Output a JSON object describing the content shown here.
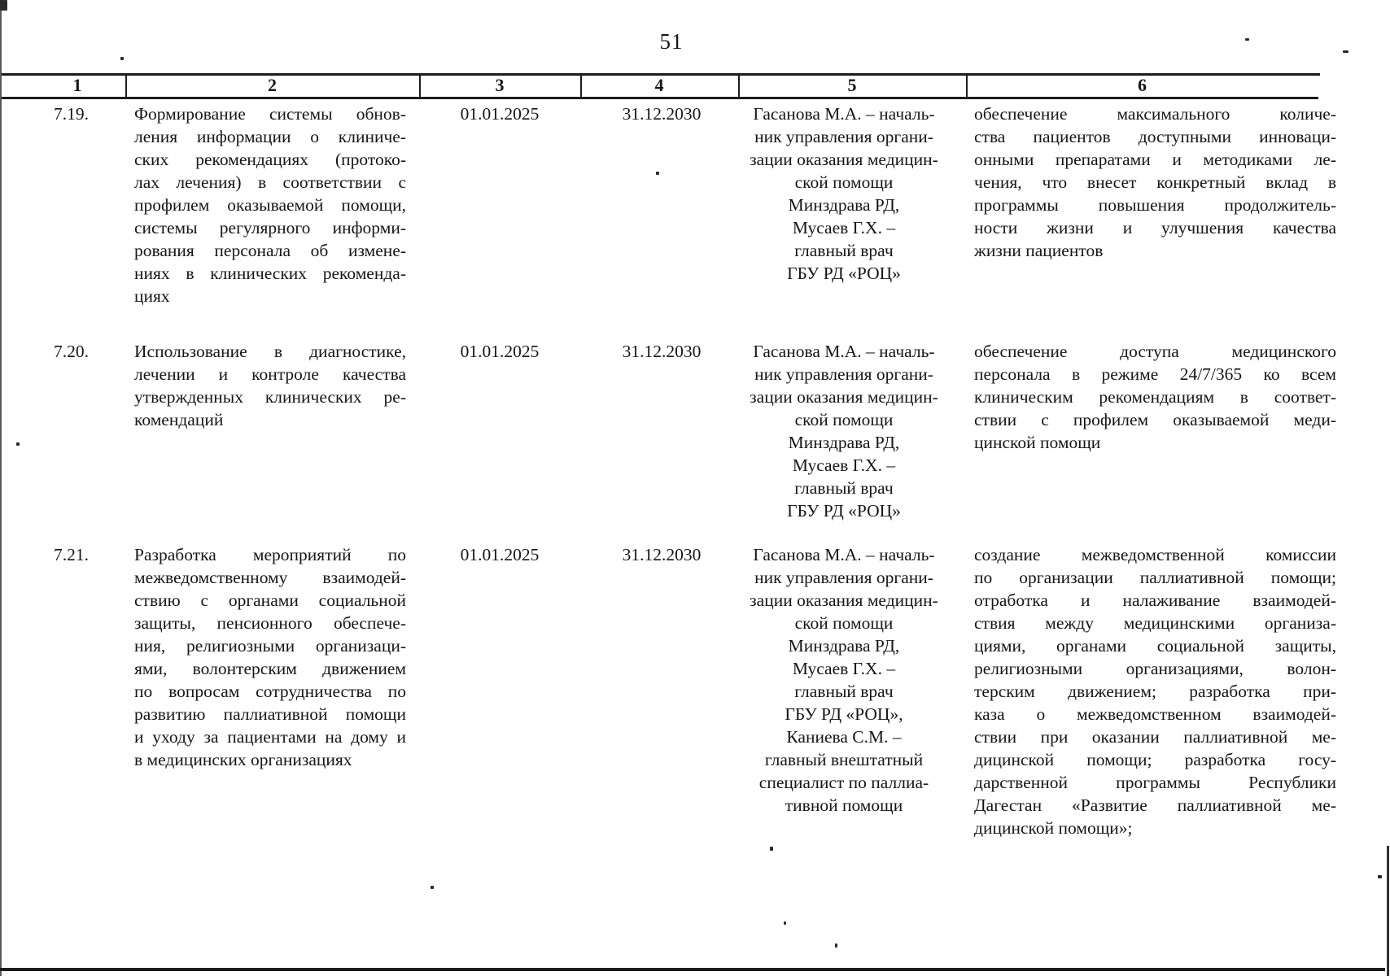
{
  "page": {
    "number": "51"
  },
  "table": {
    "columns": [
      "1",
      "2",
      "3",
      "4",
      "5",
      "6"
    ],
    "rows": [
      {
        "num": "7.19.",
        "activity_lines": [
          "Формирование системы обнов-",
          "ления информации о клиниче-",
          "ских рекомендациях (протоко-",
          "лах лечения) в соответствии с",
          "профилем оказываемой помощи,",
          "системы регулярного информи-",
          "рования персонала об измене-",
          "ниях в клинических рекоменда-",
          "циях"
        ],
        "start_date": "01.01.2025",
        "end_date": "31.12.2030",
        "responsible_lines": [
          "Гасанова М.А. – началь-",
          "ник управления органи-",
          "зации оказания медицин-",
          "ской помощи",
          "Минздрава РД,",
          "Мусаев Г.Х. –",
          "главный врач",
          "ГБУ РД «РОЦ»"
        ],
        "result_lines": [
          "обеспечение максимального количе-",
          "ства пациентов доступными инноваци-",
          "онными препаратами и методиками ле-",
          "чения, что внесет конкретный вклад в",
          "программы повышения продолжитель-",
          "ности жизни и улучшения качества",
          "жизни пациентов"
        ]
      },
      {
        "num": "7.20.",
        "activity_lines": [
          "Использование в диагностике,",
          "лечении и контроле качества",
          "утвержденных клинических ре-",
          "комендаций"
        ],
        "start_date": "01.01.2025",
        "end_date": "31.12.2030",
        "responsible_lines": [
          "Гасанова М.А. – началь-",
          "ник управления органи-",
          "зации оказания медицин-",
          "ской помощи",
          "Минздрава РД,",
          "Мусаев Г.Х. –",
          "главный врач",
          "ГБУ РД «РОЦ»"
        ],
        "result_lines": [
          "обеспечение доступа медицинского",
          "персонала в режиме 24/7/365 ко всем",
          "клиническим рекомендациям в соответ-",
          "ствии с профилем оказываемой меди-",
          "цинской помощи"
        ]
      },
      {
        "num": "7.21.",
        "activity_lines": [
          "Разработка мероприятий по",
          "межведомственному взаимодей-",
          "ствию с органами социальной",
          "защиты, пенсионного обеспече-",
          "ния, религиозными организаци-",
          "ями, волонтерским движением",
          "по вопросам сотрудничества по",
          "развитию паллиативной помощи",
          "и уходу за пациентами на дому и",
          "в медицинских организациях"
        ],
        "start_date": "01.01.2025",
        "end_date": "31.12.2030",
        "responsible_lines": [
          "Гасанова М.А. – началь-",
          "ник управления органи-",
          "зации оказания медицин-",
          "ской помощи",
          "Минздрава РД,",
          "Мусаев Г.Х. –",
          "главный врач",
          "ГБУ РД «РОЦ»,",
          "Каниева С.М. –",
          "главный внештатный",
          "специалист по паллиа-",
          "тивной помощи"
        ],
        "result_lines": [
          "создание межведомственной комиссии",
          "по организации паллиативной помощи;",
          "отработка и налаживание взаимодей-",
          "ствия между медицинскими организа-",
          "циями, органами социальной защиты,",
          "религиозными организациями, волон-",
          "терским движением; разработка при-",
          "каза о межведомственном взаимодей-",
          "ствии при оказании паллиативной ме-",
          "дицинской помощи; разработка госу-",
          "дарственной программы Республики",
          "Дагестан «Развитие паллиативной ме-",
          "дицинской помощи»;"
        ]
      }
    ]
  }
}
